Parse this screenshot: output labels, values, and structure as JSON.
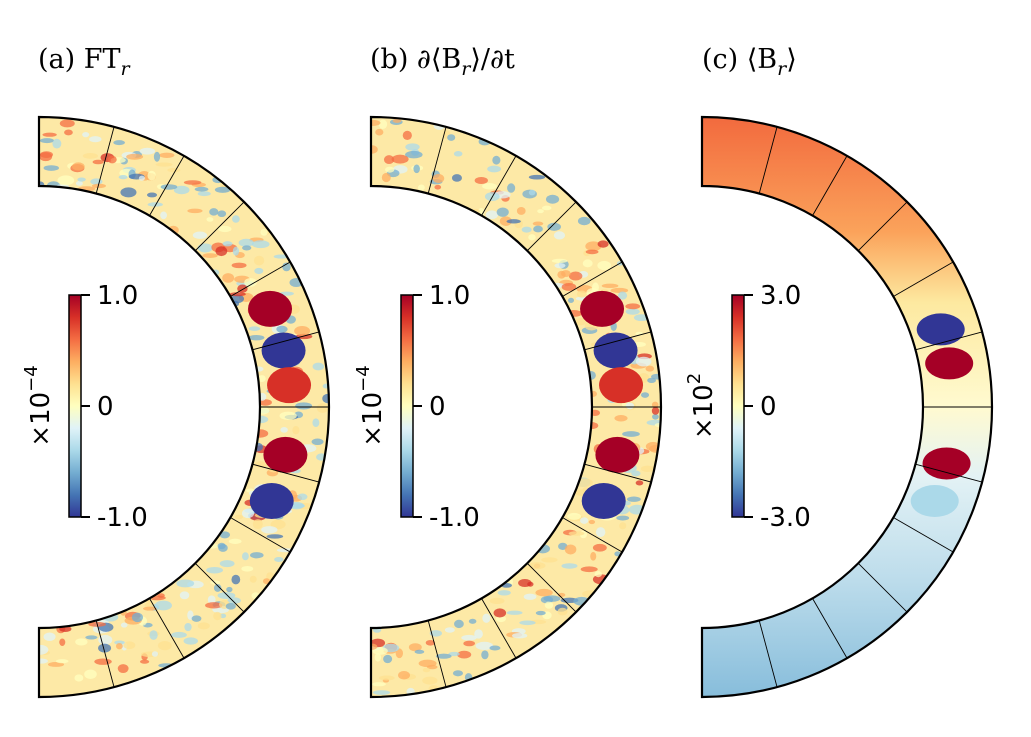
{
  "chart_data": [
    {
      "type": "heatmap",
      "title_prefix": "(a) FT",
      "title_sub": "r",
      "projection": "meridional half-annulus",
      "colormap": "RdYlBu_r",
      "colorbar": {
        "ticks": [
          "1.0",
          "0",
          "-1.0"
        ],
        "tick_values": [
          1.0,
          0,
          -1.0
        ],
        "range": [
          -1.0,
          1.0
        ],
        "scale_base": "×10",
        "scale_exponent": "−4"
      },
      "latitude_lines_deg": [
        -75,
        -60,
        -45,
        -30,
        -15,
        0,
        15,
        30,
        45,
        60,
        75
      ],
      "features": [
        {
          "lat": 23,
          "value": 1.0
        },
        {
          "lat": 13,
          "value": -1.0
        },
        {
          "lat": 5,
          "value": 0.8
        },
        {
          "lat": -11,
          "value": 0.9
        },
        {
          "lat": -22,
          "value": -1.0
        }
      ]
    },
    {
      "type": "heatmap",
      "title_prefix": "(b) ∂⟨B",
      "title_sub": "r",
      "title_suffix": "⟩/∂t",
      "projection": "meridional half-annulus",
      "colormap": "RdYlBu_r",
      "colorbar": {
        "ticks": [
          "1.0",
          "0",
          "-1.0"
        ],
        "tick_values": [
          1.0,
          0,
          -1.0
        ],
        "range": [
          -1.0,
          1.0
        ],
        "scale_base": "×10",
        "scale_exponent": "−4"
      },
      "latitude_lines_deg": [
        -75,
        -60,
        -45,
        -30,
        -15,
        0,
        15,
        30,
        45,
        60,
        75
      ],
      "features": [
        {
          "lat": 23,
          "value": 1.0
        },
        {
          "lat": 13,
          "value": -1.0
        },
        {
          "lat": 5,
          "value": 0.8
        },
        {
          "lat": -11,
          "value": 0.9
        },
        {
          "lat": -22,
          "value": -1.0
        }
      ]
    },
    {
      "type": "heatmap",
      "title_prefix": "(c) ⟨B",
      "title_sub": "r",
      "title_suffix": "⟩",
      "projection": "meridional half-annulus",
      "colormap": "RdYlBu_r",
      "colorbar": {
        "ticks": [
          "3.0",
          "0",
          "-3.0"
        ],
        "tick_values": [
          3.0,
          0,
          -3.0
        ],
        "range": [
          -3.0,
          3.0
        ],
        "scale_base": "×10",
        "scale_exponent": "2"
      },
      "latitude_lines_deg": [
        -75,
        -60,
        -45,
        -30,
        -15,
        0,
        15,
        30,
        45,
        60,
        75
      ],
      "features": [
        {
          "lat": 18,
          "value": -3.0
        },
        {
          "lat": 10,
          "value": 3.0
        },
        {
          "lat": -13,
          "value": 3.0
        },
        {
          "lat": -22,
          "value": -1.2
        }
      ]
    }
  ]
}
